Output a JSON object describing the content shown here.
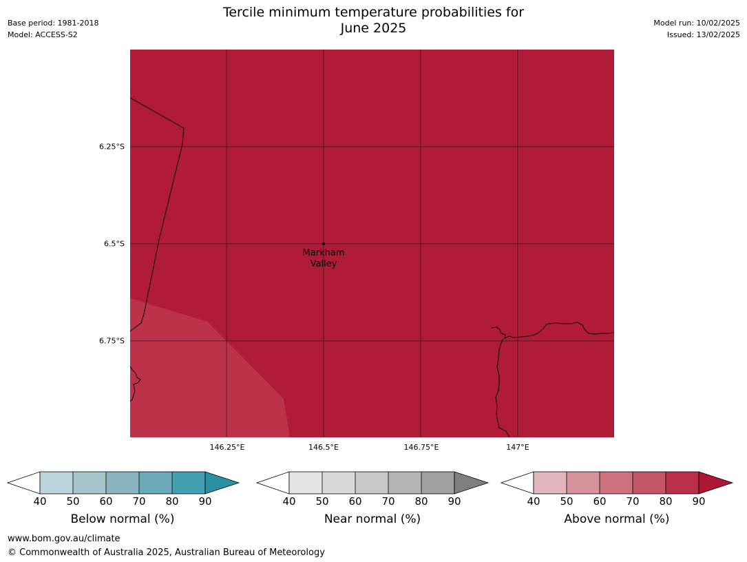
{
  "header": {
    "title_line1": "Tercile minimum temperature probabilities for",
    "title_line2": "June 2025",
    "base_period": "Base period: 1981-2018",
    "model": "Model: ACCESS-S2",
    "model_run": "Model run: 10/02/2025",
    "issued": "Issued: 13/02/2025"
  },
  "map": {
    "place_label_line1": "Markham",
    "place_label_line2": "Valley",
    "lat_labels": [
      "6.25°S",
      "6.5°S",
      "6.75°S"
    ],
    "lon_labels": [
      "146.25°E",
      "146.5°E",
      "146.75°E",
      "147°E"
    ],
    "fill_colors": {
      "above_90": "#b01c37",
      "above_80": "#bc3249"
    }
  },
  "legend": {
    "ticks": [
      "40",
      "50",
      "60",
      "70",
      "80",
      "90"
    ],
    "below": {
      "label": "Below normal (%)",
      "colors": [
        "#bdd3da",
        "#a6c5cc",
        "#8ab4c0",
        "#6aa9b7",
        "#449fb0",
        "#2a91a3"
      ]
    },
    "near": {
      "label": "Near normal (%)",
      "colors": [
        "#e5e5e5",
        "#d8d8d8",
        "#c8c8c8",
        "#b4b4b4",
        "#a0a0a0",
        "#7f7f7f"
      ]
    },
    "above": {
      "label": "Above normal (%)",
      "colors": [
        "#e1b6bc",
        "#d6929b",
        "#cc737f",
        "#c35566",
        "#bb2f48",
        "#ad1733"
      ]
    }
  },
  "footer": {
    "url": "www.bom.gov.au/climate",
    "copyright": "© Commonwealth of Australia 2025, Australian Bureau of Meteorology"
  }
}
